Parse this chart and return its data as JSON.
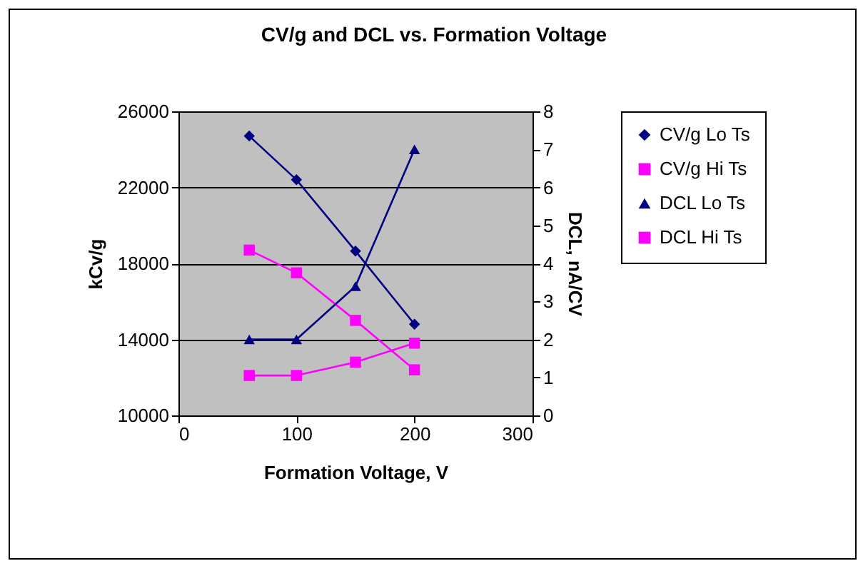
{
  "chart_data": {
    "type": "line",
    "title": "CV/g and DCL vs. Formation Voltage",
    "xlabel": "Formation Voltage, V",
    "ylabel": "kCv/g",
    "y2label": "DCL, nA/CV",
    "x": [
      60,
      100,
      150,
      200
    ],
    "series": [
      {
        "name": "CV/g Lo Ts",
        "color": "#000080",
        "marker": "diamond",
        "values": [
          24700,
          22400,
          18650,
          14800
        ]
      },
      {
        "name": "CV/g Hi Ts",
        "color": "#ff00ff",
        "marker": "square",
        "values": [
          18700,
          17500,
          15000,
          12400
        ]
      },
      {
        "name": "DCL Lo Ts",
        "color": "#000080",
        "marker": "triangle",
        "axis": "y2",
        "values": [
          2.0,
          2.0,
          3.4,
          7.0
        ]
      },
      {
        "name": "DCL Hi Ts",
        "color": "#ff00ff",
        "marker": "square",
        "axis": "y2",
        "values": [
          1.05,
          1.05,
          1.4,
          1.9
        ]
      }
    ],
    "xlim": [
      0,
      300
    ],
    "xticks": [
      0,
      100,
      200,
      300
    ],
    "ylim": [
      10000,
      26000
    ],
    "yticks": [
      10000,
      14000,
      18000,
      22000,
      26000
    ],
    "y2lim": [
      0,
      8
    ],
    "y2ticks": [
      0,
      1,
      2,
      3,
      4,
      5,
      6,
      7,
      8
    ],
    "grid": "y",
    "legend": "right"
  }
}
